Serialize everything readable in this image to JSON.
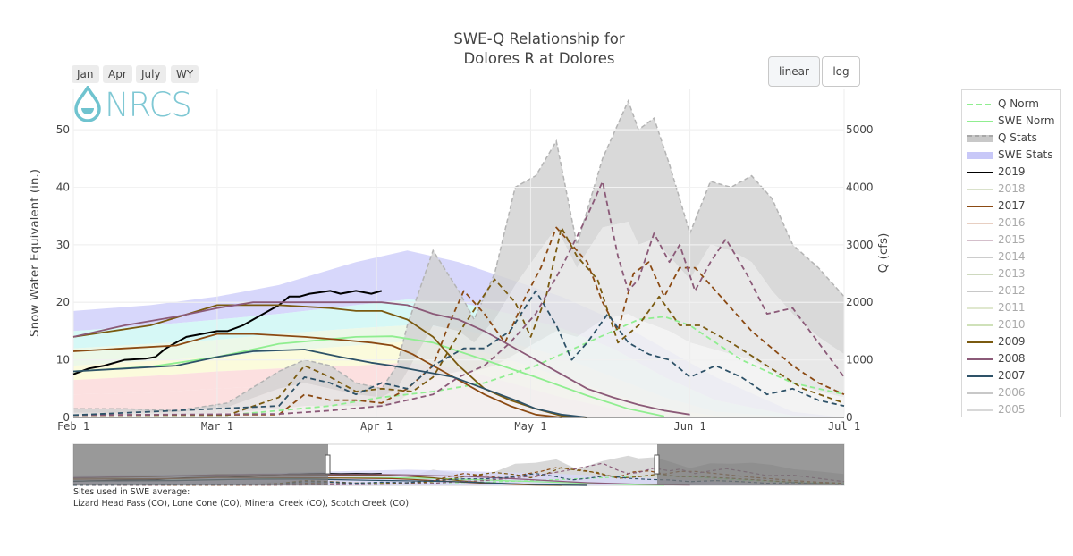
{
  "title_line1": "SWE-Q Relationship for",
  "title_line2": "Dolores R at Dolores",
  "range_buttons": [
    "Jan",
    "Apr",
    "July",
    "WY"
  ],
  "scale_buttons": {
    "linear": "linear",
    "log": "log",
    "active": "linear"
  },
  "logo_text": "NRCS",
  "footer": {
    "line1": "Sites used in SWE average:",
    "line2": "Lizard Head Pass (CO), Lone Cone (CO), Mineral Creek (CO), Scotch Creek (CO)"
  },
  "legend": [
    {
      "name": "Q Norm",
      "color": "#90ee90",
      "dash": true,
      "faded": false
    },
    {
      "name": "SWE Norm",
      "color": "#90ee90",
      "dash": false,
      "faded": false
    },
    {
      "name": "Q Stats",
      "color": "#c8c8c8",
      "dash": true,
      "fill": true,
      "faded": false
    },
    {
      "name": "SWE Stats",
      "color": "#c8c8f8",
      "fill": true,
      "faded": false
    },
    {
      "name": "2019",
      "color": "#000000",
      "faded": false
    },
    {
      "name": "2018",
      "color": "#b9c99f",
      "faded": true
    },
    {
      "name": "2017",
      "color": "#8b4a13",
      "faded": false
    },
    {
      "name": "2016",
      "color": "#d6a88f",
      "faded": true
    },
    {
      "name": "2015",
      "color": "#b08aa0",
      "faded": true
    },
    {
      "name": "2014",
      "color": "#a3a3a3",
      "faded": true
    },
    {
      "name": "2013",
      "color": "#a6b98a",
      "faded": true
    },
    {
      "name": "2012",
      "color": "#9a9a9a",
      "faded": true
    },
    {
      "name": "2011",
      "color": "#c7d6a8",
      "faded": true
    },
    {
      "name": "2010",
      "color": "#a8c87f",
      "faded": true
    },
    {
      "name": "2009",
      "color": "#7a5a10",
      "faded": false
    },
    {
      "name": "2008",
      "color": "#8b5a78",
      "faded": false
    },
    {
      "name": "2007",
      "color": "#2e5268",
      "faded": false
    },
    {
      "name": "2006",
      "color": "#9a9a9a",
      "faded": true
    },
    {
      "name": "2005",
      "color": "#b8b8b8",
      "faded": true
    }
  ],
  "chart_data": {
    "type": "line",
    "title": "SWE-Q Relationship for Dolores R at Dolores",
    "xlabel": "",
    "ylabel": "Snow Water Equivalent (in.)",
    "y2label": "Q (cfs)",
    "x_ticks": [
      "Feb  1",
      "Mar  1",
      "Apr  1",
      "May  1",
      "Jun  1",
      "Jul  1"
    ],
    "x_tick_days": [
      0,
      28,
      59,
      89,
      120,
      150
    ],
    "xlim_days": [
      0,
      150
    ],
    "ylim": [
      0,
      57
    ],
    "y_ticks": [
      0,
      10,
      20,
      30,
      40,
      50
    ],
    "y2lim": [
      0,
      5700
    ],
    "y2_ticks": [
      0,
      1000,
      2000,
      3000,
      4000,
      5000
    ],
    "grid": true,
    "legend_position": "right",
    "swe_stats_bands": {
      "days": [
        0,
        15,
        28,
        40,
        55,
        65,
        75,
        85,
        95,
        105,
        115,
        125,
        140,
        150
      ],
      "max": [
        18.5,
        19.5,
        21,
        23,
        27,
        29,
        27,
        24,
        21,
        17,
        12,
        7,
        1,
        0
      ],
      "p90": [
        15,
        16,
        17,
        18,
        19.5,
        20.5,
        20,
        18,
        15.5,
        12,
        7,
        3,
        0.3,
        0
      ],
      "p70": [
        12,
        12.8,
        13.5,
        14.5,
        15.5,
        16,
        15.5,
        13,
        10.5,
        7,
        3.5,
        1,
        0,
        0
      ],
      "p50": [
        9,
        9.8,
        10.5,
        11.5,
        12.5,
        13.2,
        12.5,
        10,
        7,
        4,
        1.5,
        0.3,
        0,
        0
      ],
      "p30": [
        6.5,
        7.2,
        8,
        8.5,
        9,
        9.5,
        8.5,
        6,
        3.5,
        1.5,
        0.3,
        0,
        0,
        0
      ],
      "p10": [
        4,
        4.3,
        5,
        5.5,
        6,
        5.5,
        4,
        2.5,
        1,
        0.3,
        0,
        0,
        0,
        0
      ],
      "colors": [
        "#c9c9fa",
        "#c8f5f3",
        "#e6f5e0",
        "#fafad0",
        "#fbd6d6"
      ]
    },
    "q_stats_bands": {
      "days": [
        0,
        10,
        20,
        30,
        40,
        45,
        50,
        55,
        60,
        63,
        65,
        70,
        75,
        78,
        82,
        86,
        90,
        94,
        98,
        103,
        108,
        110,
        113,
        116,
        120,
        124,
        128,
        132,
        136,
        140,
        145,
        150
      ],
      "max": [
        150,
        150,
        120,
        250,
        800,
        1000,
        900,
        600,
        500,
        900,
        1600,
        2900,
        2200,
        1700,
        2500,
        4000,
        4200,
        4800,
        3000,
        4500,
        5500,
        5000,
        5200,
        4400,
        3200,
        4100,
        4000,
        4200,
        3800,
        3000,
        2600,
        2100
      ],
      "upper": [
        80,
        80,
        90,
        180,
        500,
        600,
        500,
        400,
        350,
        500,
        800,
        1600,
        1500,
        1300,
        1700,
        2300,
        2800,
        3300,
        2600,
        3300,
        3400,
        3000,
        3100,
        2800,
        2400,
        3000,
        2900,
        2700,
        2200,
        1800,
        1400,
        1100
      ],
      "median": [
        40,
        40,
        40,
        80,
        150,
        200,
        200,
        200,
        180,
        250,
        400,
        700,
        800,
        800,
        900,
        1100,
        1300,
        1500,
        1400,
        1700,
        1800,
        1700,
        1600,
        1500,
        1300,
        1200,
        1100,
        1000,
        800,
        600,
        450,
        350
      ]
    },
    "series": [
      {
        "name": "Q Norm",
        "axis": "y2",
        "dash": true,
        "color": "#90ee90",
        "x": [
          0,
          30,
          50,
          60,
          70,
          80,
          90,
          100,
          105,
          110,
          115,
          120,
          125,
          130,
          140,
          150
        ],
        "y": [
          40,
          40,
          200,
          350,
          450,
          600,
          900,
          1300,
          1500,
          1700,
          1750,
          1600,
          1300,
          1000,
          600,
          400
        ]
      },
      {
        "name": "SWE Norm",
        "axis": "y",
        "dash": false,
        "color": "#90ee90",
        "x": [
          0,
          15,
          28,
          40,
          55,
          62,
          70,
          80,
          90,
          100,
          108,
          115
        ],
        "y": [
          8,
          8.8,
          10.5,
          12.8,
          14,
          14.1,
          13,
          10,
          7,
          3.8,
          1.5,
          0.2
        ]
      },
      {
        "name": "2019",
        "axis": "y",
        "dash": false,
        "color": "#000000",
        "x": [
          0,
          3,
          6,
          10,
          14,
          16,
          18,
          20,
          22,
          25,
          28,
          30,
          33,
          36,
          40,
          42,
          44,
          46,
          50,
          52,
          55,
          58,
          60
        ],
        "y": [
          7.5,
          8.5,
          9,
          10,
          10.2,
          10.5,
          12,
          13,
          14,
          14.5,
          15,
          15,
          16,
          17.5,
          19.5,
          21,
          21,
          21.5,
          22,
          21.5,
          22,
          21.5,
          22
        ]
      },
      {
        "name": "2017",
        "axis": "y",
        "dash": false,
        "color": "#8b4a13",
        "x": [
          0,
          10,
          20,
          28,
          35,
          45,
          52,
          58,
          62,
          66,
          70,
          75,
          80,
          85,
          90,
          95
        ],
        "y": [
          11.5,
          12,
          12.5,
          14.5,
          14.5,
          14,
          13.5,
          13,
          12.5,
          11,
          9,
          6.5,
          4,
          2,
          0.5,
          0
        ]
      },
      {
        "name": "2017 Q",
        "axis": "y2",
        "dash": true,
        "color": "#8b4a13",
        "x": [
          0,
          40,
          45,
          50,
          55,
          60,
          65,
          70,
          73,
          76,
          80,
          84,
          88,
          91,
          94,
          97,
          100,
          103,
          106,
          109,
          112,
          115,
          118,
          121,
          124,
          128,
          132,
          136,
          140,
          145,
          150
        ],
        "y": [
          40,
          50,
          400,
          300,
          300,
          250,
          500,
          900,
          1600,
          2200,
          1800,
          1300,
          2100,
          2600,
          3300,
          3000,
          2700,
          2000,
          1500,
          2500,
          2700,
          2100,
          2600,
          2600,
          2300,
          1900,
          1500,
          1200,
          900,
          600,
          400
        ]
      },
      {
        "name": "2009",
        "axis": "y",
        "dash": false,
        "color": "#7a5a10",
        "x": [
          0,
          15,
          28,
          40,
          50,
          55,
          60,
          65,
          70,
          75,
          80,
          85,
          90,
          95,
          100
        ],
        "y": [
          14,
          16,
          19.5,
          19.5,
          19,
          18.5,
          18.5,
          17,
          14,
          9,
          5,
          3,
          1.5,
          0.3,
          0
        ]
      },
      {
        "name": "2009 Q",
        "axis": "y2",
        "dash": true,
        "color": "#7a5a10",
        "x": [
          0,
          30,
          40,
          45,
          50,
          55,
          60,
          66,
          70,
          76,
          82,
          86,
          89,
          92,
          95,
          98,
          102,
          106,
          110,
          114,
          118,
          122,
          128,
          135,
          142,
          150
        ],
        "y": [
          40,
          40,
          350,
          900,
          700,
          450,
          500,
          450,
          700,
          1600,
          2400,
          2000,
          1400,
          2100,
          3300,
          2800,
          2400,
          1300,
          1600,
          2100,
          1600,
          1600,
          1300,
          900,
          500,
          250
        ]
      },
      {
        "name": "2008",
        "axis": "y",
        "dash": false,
        "color": "#8b5a78",
        "x": [
          0,
          10,
          20,
          28,
          35,
          45,
          52,
          60,
          65,
          70,
          75,
          80,
          85,
          90,
          95,
          100,
          105,
          110,
          115,
          120
        ],
        "y": [
          14,
          16,
          17.5,
          19,
          20,
          20,
          20,
          20,
          19.5,
          18,
          17,
          15,
          12.5,
          10,
          7.5,
          5,
          3.5,
          2.2,
          1.2,
          0.5
        ]
      },
      {
        "name": "2008 Q",
        "axis": "y2",
        "dash": true,
        "color": "#8b5a78",
        "x": [
          0,
          40,
          50,
          60,
          70,
          75,
          80,
          85,
          90,
          95,
          100,
          103,
          106,
          108,
          110,
          113,
          116,
          118,
          121,
          124,
          127,
          131,
          135,
          140,
          145,
          150
        ],
        "y": [
          40,
          60,
          120,
          200,
          400,
          700,
          900,
          1300,
          1800,
          2600,
          3500,
          4100,
          2800,
          2200,
          2400,
          3200,
          2700,
          3000,
          2200,
          2700,
          3100,
          2500,
          1800,
          1900,
          1300,
          700
        ]
      },
      {
        "name": "2007",
        "axis": "y",
        "dash": false,
        "color": "#2e5268",
        "x": [
          0,
          10,
          20,
          28,
          35,
          45,
          52,
          58,
          62,
          68,
          74,
          80,
          86,
          90,
          95,
          100
        ],
        "y": [
          8,
          8.5,
          9,
          10.5,
          11.5,
          11.8,
          10.5,
          9.5,
          9,
          8,
          7,
          5,
          3,
          1.5,
          0.5,
          0
        ]
      },
      {
        "name": "2007 Q",
        "axis": "y2",
        "dash": true,
        "color": "#2e5268",
        "x": [
          0,
          40,
          45,
          50,
          55,
          60,
          65,
          70,
          76,
          80,
          85,
          90,
          94,
          97,
          100,
          104,
          108,
          112,
          116,
          120,
          125,
          130,
          135,
          140,
          145,
          150
        ],
        "y": [
          40,
          200,
          700,
          600,
          400,
          600,
          500,
          900,
          1200,
          1200,
          1500,
          2200,
          1600,
          1000,
          1300,
          1800,
          1300,
          1100,
          1000,
          700,
          900,
          700,
          400,
          500,
          300,
          200
        ]
      }
    ]
  }
}
